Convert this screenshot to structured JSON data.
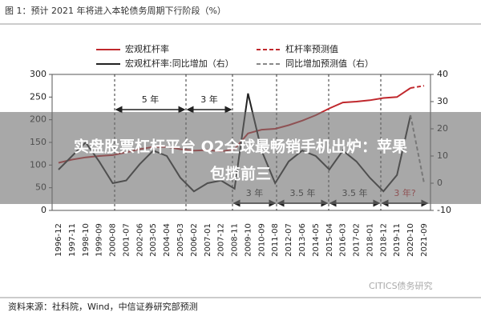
{
  "chart_data": {
    "type": "line",
    "title": "图 1：预计 2021 年将进入本轮债务周期下行阶段（%）",
    "categories": [
      "1996-12",
      "1997-11",
      "1998-10",
      "1999-09",
      "2000-08",
      "2001-07",
      "2002-06",
      "2003-05",
      "2004-04",
      "2005-03",
      "2006-02",
      "2007-01",
      "2007-12",
      "2008-11",
      "2009-10",
      "2010-09",
      "2011-08",
      "2012-07",
      "2013-06",
      "2014-05",
      "2015-04",
      "2016-03",
      "2017-02",
      "2018-01",
      "2018-12",
      "2019-11",
      "2020-10",
      "2021-09"
    ],
    "series": [
      {
        "name": "宏观杠杆率",
        "color": "#c0282d",
        "line_style": "solid",
        "values": [
          105,
          112,
          117,
          120,
          122,
          128,
          135,
          140,
          140,
          135,
          132,
          133,
          130,
          135,
          170,
          178,
          180,
          188,
          198,
          210,
          225,
          238,
          240,
          243,
          248,
          250,
          270,
          null
        ]
      },
      {
        "name": "杠杆率预测值",
        "color": "#c0282d",
        "line_style": "dashed",
        "values": [
          null,
          null,
          null,
          null,
          null,
          null,
          null,
          null,
          null,
          null,
          null,
          null,
          null,
          null,
          null,
          null,
          null,
          null,
          null,
          null,
          null,
          null,
          null,
          null,
          null,
          null,
          270,
          275
        ]
      },
      {
        "name": "宏观杠杆率:同比增加（右）",
        "color": "#222222",
        "line_style": "solid",
        "axis": "y2",
        "values": [
          5,
          10,
          15,
          8,
          0,
          1,
          7,
          12,
          10,
          2,
          -3,
          0,
          1,
          -2,
          33,
          12,
          0,
          8,
          12,
          10,
          5,
          12,
          8,
          2,
          -3,
          3,
          25,
          null
        ]
      },
      {
        "name": "同比增加预测值（右）",
        "color": "#888888",
        "line_style": "dashed",
        "axis": "y2",
        "values": [
          null,
          null,
          null,
          null,
          null,
          null,
          null,
          null,
          null,
          null,
          null,
          null,
          null,
          null,
          null,
          null,
          null,
          null,
          null,
          null,
          null,
          null,
          null,
          null,
          null,
          null,
          25,
          0
        ]
      }
    ],
    "ylim": [
      0,
      300
    ],
    "yticks": [
      0,
      50,
      100,
      150,
      200,
      250,
      300
    ],
    "y2lim": [
      -10,
      40
    ],
    "y2ticks": [
      -10,
      0,
      10,
      20,
      30,
      40
    ],
    "annotations": [
      "5 年",
      "3 年",
      "3 年",
      "3.5 年",
      "3.5 年",
      "3 年?"
    ],
    "source": "资料来源：社科院，Wind，中信证券研究部预测",
    "watermark": "CITICS债务研究"
  },
  "overlay": {
    "lines": [
      "实盘股票杠杆平台 Q2全球最畅销手机出炉：苹果",
      "包揽前三"
    ]
  }
}
